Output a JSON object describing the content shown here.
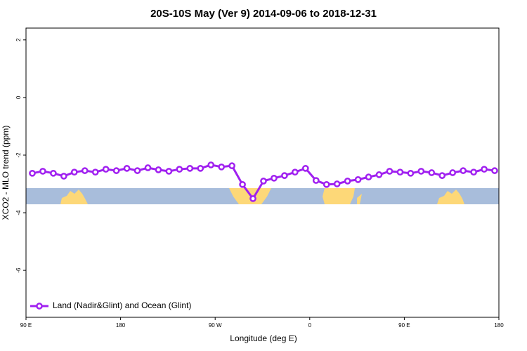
{
  "chart_data": {
    "type": "line",
    "title": "20S-10S May (Ver 9)   2014-09-06 to 2018-12-31",
    "x_label": "Longitude (deg E)",
    "y_label": "XCO2 - MLO trend (ppm)",
    "xlim": [
      90,
      540
    ],
    "xticks": [
      {
        "value": 90,
        "label": "90 E"
      },
      180,
      {
        "value": 270,
        "label": "90 W"
      },
      {
        "value": 360,
        "label": "0"
      },
      {
        "value": 450,
        "label": "90 E"
      },
      {
        "value": 540,
        "label": "180"
      }
    ],
    "ylim": [
      -7.63,
      2.41
    ],
    "yticks": [
      2,
      0,
      -2,
      -4,
      -6
    ],
    "legend": "bottom-left",
    "x": [
      96,
      106,
      116,
      126,
      136,
      146,
      156,
      166,
      176,
      186,
      196,
      206,
      216,
      226,
      236,
      246,
      256,
      266,
      276,
      286,
      296,
      306,
      316,
      326,
      336,
      346,
      356,
      366,
      376,
      386,
      396,
      406,
      416,
      426,
      436,
      446,
      456,
      466,
      476,
      486,
      496,
      506,
      516,
      526,
      536
    ],
    "series": [
      {
        "name": "Land (Nadir&Glint) and Ocean (Glint)",
        "color": "#a020f0",
        "values": [
          -2.63,
          -2.56,
          -2.63,
          -2.73,
          -2.59,
          -2.54,
          -2.59,
          -2.49,
          -2.54,
          -2.46,
          -2.54,
          -2.44,
          -2.51,
          -2.56,
          -2.49,
          -2.46,
          -2.46,
          -2.34,
          -2.41,
          -2.37,
          -3.02,
          -3.51,
          -2.9,
          -2.8,
          -2.71,
          -2.59,
          -2.46,
          -2.88,
          -3.02,
          -3.0,
          -2.9,
          -2.85,
          -2.76,
          -2.68,
          -2.56,
          -2.59,
          -2.63,
          -2.56,
          -2.61,
          -2.71,
          -2.61,
          -2.54,
          -2.59,
          -2.49,
          -2.54
        ]
      }
    ]
  }
}
